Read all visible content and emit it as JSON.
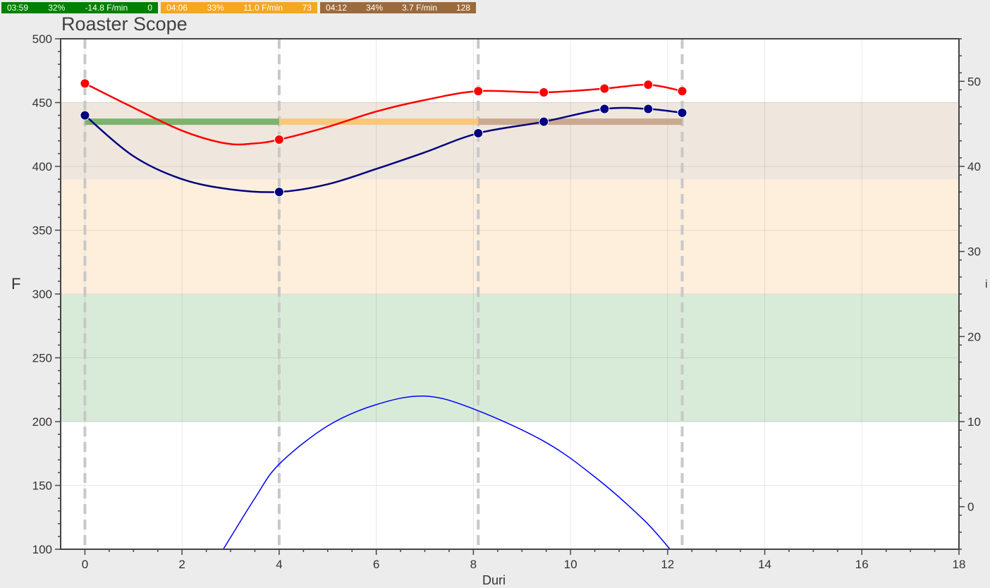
{
  "phase_bars": [
    {
      "time": "03:59",
      "percent": "32%",
      "ror": "-14.8 F/min",
      "count": "0",
      "color": "#008000"
    },
    {
      "time": "04:06",
      "percent": "33%",
      "ror": "11.0 F/min",
      "count": "73",
      "color": "#f5a623"
    },
    {
      "time": "04:12",
      "percent": "34%",
      "ror": "3.7 F/min",
      "count": "128",
      "color": "#9b6a3c"
    }
  ],
  "chart_data": {
    "type": "line",
    "title": "Roaster Scope",
    "ylabel": "F",
    "xlabel": "Duri",
    "y2label": "i",
    "xlim": [
      -0.5,
      18
    ],
    "ylim": [
      100,
      500
    ],
    "y2lim": [
      -5,
      55
    ],
    "xticks": [
      0,
      2,
      4,
      6,
      8,
      10,
      12,
      14,
      16,
      18
    ],
    "yticks": [
      100,
      150,
      200,
      250,
      300,
      350,
      400,
      450,
      500
    ],
    "y2ticks": [
      0,
      10,
      20,
      30,
      40,
      50
    ],
    "grid": true,
    "bands": [
      {
        "from": 200,
        "to": 300,
        "color": "#d8ebd8"
      },
      {
        "from": 300,
        "to": 390,
        "color": "#fdefdc"
      },
      {
        "from": 390,
        "to": 450,
        "color": "#efe6de"
      }
    ],
    "vlines": [
      0,
      4,
      8.1,
      12.3
    ],
    "phase_segments": [
      {
        "x_start": 0,
        "x_end": 4,
        "y": 435,
        "color": "#7db36e"
      },
      {
        "x_start": 4,
        "x_end": 8.1,
        "y": 435,
        "color": "#f8c878"
      },
      {
        "x_start": 8.1,
        "x_end": 12.3,
        "y": 435,
        "color": "#c9a98f"
      }
    ],
    "series": [
      {
        "color": "#ff0000",
        "points": [
          [
            0,
            465
          ],
          [
            4,
            421
          ],
          [
            8.1,
            459
          ],
          [
            9.45,
            458
          ],
          [
            10.7,
            461
          ],
          [
            11.6,
            464
          ],
          [
            12.3,
            459
          ]
        ],
        "curve": [
          [
            0,
            465
          ],
          [
            1,
            446
          ],
          [
            2,
            428
          ],
          [
            2.9,
            418
          ],
          [
            3.5,
            418
          ],
          [
            4,
            421
          ],
          [
            5,
            431
          ],
          [
            6,
            443
          ],
          [
            7,
            452
          ],
          [
            8.1,
            459
          ],
          [
            9.45,
            458
          ],
          [
            10.7,
            461
          ],
          [
            11.6,
            464
          ],
          [
            12.3,
            459
          ]
        ]
      },
      {
        "color": "#000080",
        "points": [
          [
            0,
            440
          ],
          [
            4,
            380
          ],
          [
            8.1,
            426
          ],
          [
            9.45,
            435
          ],
          [
            10.7,
            445
          ],
          [
            11.6,
            445
          ],
          [
            12.3,
            442
          ]
        ],
        "curve": [
          [
            0,
            440
          ],
          [
            1,
            408
          ],
          [
            2,
            390
          ],
          [
            3,
            382
          ],
          [
            4,
            380
          ],
          [
            5,
            386
          ],
          [
            6,
            398
          ],
          [
            7,
            411
          ],
          [
            8.1,
            426
          ],
          [
            9.45,
            435
          ],
          [
            10.7,
            445
          ],
          [
            11.6,
            445
          ],
          [
            12.3,
            442
          ]
        ]
      },
      {
        "color": "#0000ff",
        "axis": "y2",
        "curve": [
          [
            2.85,
            -5
          ],
          [
            3.5,
            1
          ],
          [
            4,
            5
          ],
          [
            5,
            9.5
          ],
          [
            6,
            12
          ],
          [
            7,
            13
          ],
          [
            8,
            11.5
          ],
          [
            9.45,
            7.7
          ],
          [
            10.5,
            3.5
          ],
          [
            11.5,
            -1.5
          ],
          [
            12.05,
            -5
          ]
        ]
      }
    ]
  }
}
